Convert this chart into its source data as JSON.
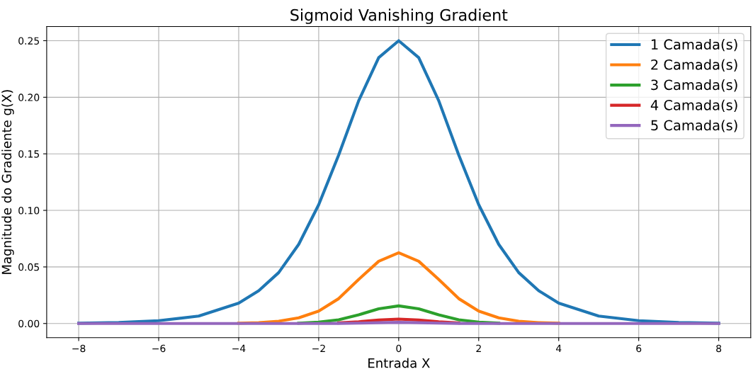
{
  "chart_data": {
    "type": "line",
    "title": "Sigmoid Vanishing Gradient",
    "xlabel": "Entrada X",
    "ylabel": "Magnitude do Gradiente g(X)",
    "x": [
      -8,
      -7,
      -6,
      -5,
      -4,
      -3.5,
      -3,
      -2.5,
      -2,
      -1.5,
      -1,
      -0.5,
      0,
      0.5,
      1,
      1.5,
      2,
      2.5,
      3,
      3.5,
      4,
      5,
      6,
      7,
      8
    ],
    "series": [
      {
        "name": "1 Camada(s)",
        "color": "#1f77b4",
        "values": [
          0.0003,
          0.0009,
          0.0025,
          0.0066,
          0.018,
          0.029,
          0.045,
          0.07,
          0.105,
          0.149,
          0.197,
          0.235,
          0.25,
          0.235,
          0.197,
          0.149,
          0.105,
          0.07,
          0.045,
          0.029,
          0.018,
          0.0066,
          0.0025,
          0.0009,
          0.0003
        ]
      },
      {
        "name": "2 Camada(s)",
        "color": "#ff7f0e",
        "values": [
          null,
          null,
          null,
          null,
          0.0003,
          0.0008,
          0.002,
          0.005,
          0.011,
          0.022,
          0.039,
          0.055,
          0.0625,
          0.055,
          0.039,
          0.022,
          0.011,
          0.005,
          0.002,
          0.0008,
          0.0003,
          null,
          null,
          null,
          null
        ]
      },
      {
        "name": "3 Camada(s)",
        "color": "#2ca02c",
        "values": [
          null,
          null,
          null,
          null,
          null,
          null,
          null,
          0.0003,
          0.0012,
          0.0033,
          0.0077,
          0.013,
          0.0156,
          0.013,
          0.0077,
          0.0033,
          0.0012,
          0.0003,
          null,
          null,
          null,
          null,
          null,
          null,
          null
        ]
      },
      {
        "name": "4 Camada(s)",
        "color": "#d62728",
        "values": [
          null,
          null,
          null,
          null,
          null,
          null,
          null,
          null,
          null,
          0.0005,
          0.0015,
          0.0031,
          0.0039,
          0.0031,
          0.0015,
          0.0005,
          null,
          null,
          null,
          null,
          null,
          null,
          null,
          null,
          null
        ]
      },
      {
        "name": "5 Camada(s)",
        "color": "#9467bd",
        "values": [
          0,
          0,
          0,
          0,
          0,
          0,
          0,
          0,
          0,
          0.0001,
          0.0003,
          0.0007,
          0.001,
          0.0007,
          0.0003,
          0.0001,
          0,
          0,
          0,
          0,
          0,
          0,
          0,
          0,
          0
        ]
      }
    ],
    "xlim": [
      -8.8,
      8.8
    ],
    "xticks": [
      -8,
      -6,
      -4,
      -2,
      0,
      2,
      4,
      6,
      8
    ],
    "ylim": [
      -0.0125,
      0.2625
    ],
    "yticks": [
      {
        "value": 0,
        "label": "0.00"
      },
      {
        "value": 0.05,
        "label": "0.05"
      },
      {
        "value": 0.1,
        "label": "0.10"
      },
      {
        "value": 0.15,
        "label": "0.15"
      },
      {
        "value": 0.2,
        "label": "0.20"
      },
      {
        "value": 0.25,
        "label": "0.25"
      }
    ],
    "grid": true,
    "legend": "top right"
  }
}
